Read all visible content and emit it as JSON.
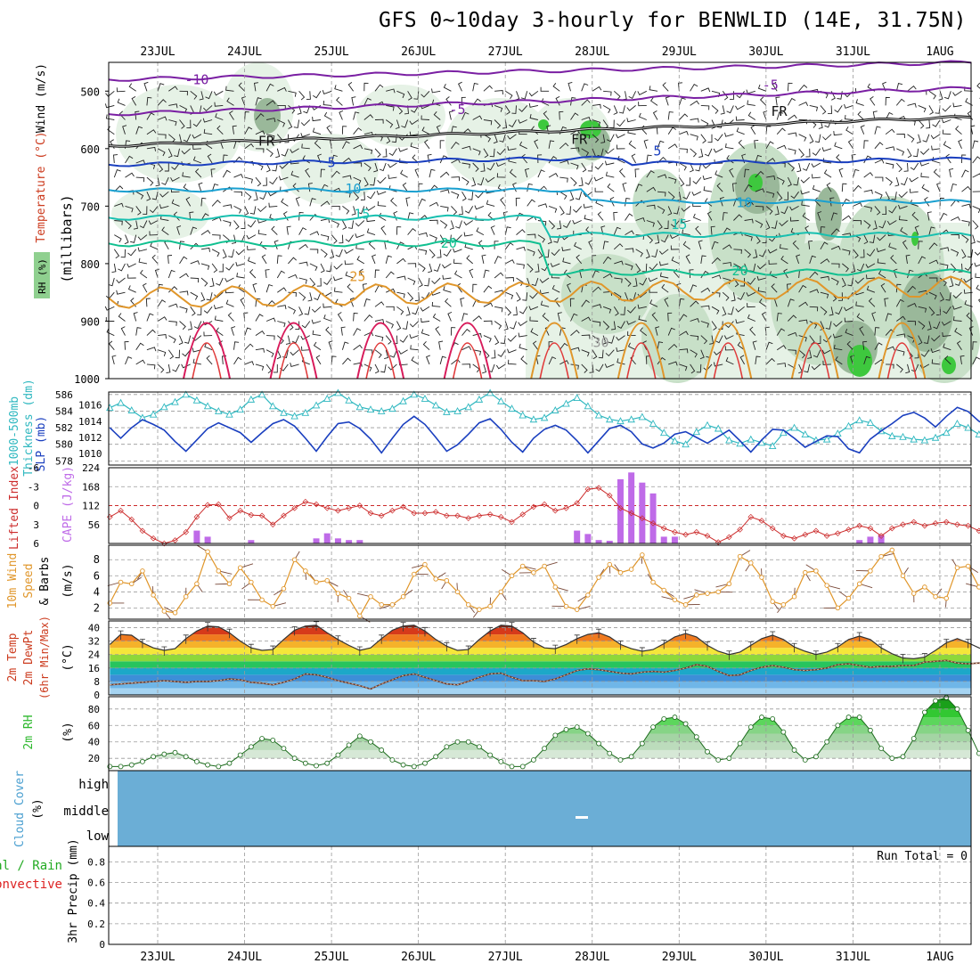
{
  "title": "GFS 0~10day 3-hourly for BENWLID (14E, 31.75N)",
  "colors": {
    "temperature": "#cc3b1e",
    "wind": "#222222",
    "rh_green": "#2db82d",
    "thickness": "#30b8c0",
    "slp": "#1a3fbf",
    "lifted_index": "#cc2b2b",
    "cape": "#bf6be8",
    "wind10m": "#e0962a",
    "cloud_fill": "#6baed6",
    "precip_total": "#22aa22",
    "precip_conv": "#dd2222"
  },
  "chart_data": [
    {
      "type": "heatmap",
      "panel": "upper-air",
      "x_labels": [
        "23JUL",
        "24JUL",
        "25JUL",
        "26JUL",
        "27JUL",
        "28JUL",
        "29JUL",
        "30JUL",
        "31JUL",
        "1AUG"
      ],
      "ylabel": "(millibars)",
      "y_ticks": [
        500,
        600,
        700,
        800,
        900,
        1000
      ],
      "ylim": [
        1000,
        450
      ],
      "legend": [
        "Temperature (°C)",
        "Wind (m/s)",
        "RH (%)"
      ],
      "contour_labels": [
        {
          "text": "-10",
          "x": 0.45,
          "y": 488,
          "color": "#7a1fa3"
        },
        {
          "text": "-5",
          "x": 3.45,
          "y": 540,
          "color": "#7a1fa3"
        },
        {
          "text": "-5",
          "x": 7.05,
          "y": 497,
          "color": "#7a1fa3"
        },
        {
          "text": "FR",
          "x": 1.25,
          "y": 595,
          "color": "#111111"
        },
        {
          "text": "FR",
          "x": 4.85,
          "y": 592,
          "color": "#111111"
        },
        {
          "text": "FR",
          "x": 7.15,
          "y": 543,
          "color": "#111111"
        },
        {
          "text": "5",
          "x": 2.0,
          "y": 632,
          "color": "#1a3fbf"
        },
        {
          "text": "5",
          "x": 5.75,
          "y": 612,
          "color": "#1a3fbf"
        },
        {
          "text": "10",
          "x": 2.25,
          "y": 678,
          "color": "#1aa0d0"
        },
        {
          "text": "10",
          "x": 6.75,
          "y": 702,
          "color": "#1aa0d0"
        },
        {
          "text": "15",
          "x": 2.35,
          "y": 722,
          "color": "#18c0b0"
        },
        {
          "text": "15",
          "x": 6.0,
          "y": 740,
          "color": "#18c0b0"
        },
        {
          "text": "20",
          "x": 3.35,
          "y": 772,
          "color": "#10c090"
        },
        {
          "text": "20",
          "x": 6.7,
          "y": 820,
          "color": "#10c090"
        },
        {
          "text": "25",
          "x": 2.3,
          "y": 830,
          "color": "#e0962a"
        },
        {
          "text": "30",
          "x": 5.1,
          "y": 945,
          "color": "#9a9a9a"
        }
      ]
    },
    {
      "type": "line",
      "panel": "thickness-slp",
      "x_labels": [
        "23JUL",
        "24JUL",
        "25JUL",
        "26JUL",
        "27JUL",
        "28JUL",
        "29JUL",
        "30JUL",
        "31JUL",
        "1AUG"
      ],
      "left_axis": {
        "label": "1000-500mb Thickness (dm)",
        "ticks": [
          578,
          580,
          582,
          584,
          586
        ],
        "range": [
          577.5,
          586.3
        ]
      },
      "right_axis": {
        "label": "SLP (mb)",
        "ticks": [
          1010,
          1012,
          1014,
          1016
        ],
        "range": [
          1008.6,
          1017.6
        ]
      },
      "series": [
        {
          "name": "1000-500mb Thickness (dm)",
          "axis": "left",
          "marker": "triangle",
          "values": [
            584.4,
            585.0,
            584.1,
            583.2,
            583.6,
            584.5,
            585.1,
            586.0,
            585.3,
            584.6,
            584.0,
            583.6,
            584.2,
            585.4,
            586.0,
            584.6,
            583.8,
            583.4,
            583.8,
            584.7,
            585.5,
            586.2,
            585.3,
            584.5,
            584.2,
            584.0,
            584.3,
            585.2,
            586.0,
            585.5,
            584.7,
            583.9,
            584.0,
            584.5,
            585.4,
            586.2,
            585.2,
            584.3,
            583.5,
            583.0,
            583.2,
            584.1,
            584.9,
            585.6,
            584.6,
            583.5,
            583.0,
            582.8,
            583.0,
            583.3,
            582.5,
            581.4,
            580.4,
            580.0,
            581.5,
            582.3,
            581.9,
            580.5,
            580.1,
            580.6,
            580.2,
            579.8,
            581.4,
            582.0,
            581.2,
            580.5,
            580.6,
            581.3,
            582.2,
            582.9,
            582.6,
            581.6,
            581.0,
            580.9,
            580.6,
            580.5,
            580.8,
            581.4,
            582.5,
            582.0,
            581.2,
            580.4,
            579.4,
            578.6
          ]
        },
        {
          "name": "SLP (mb)",
          "axis": "right",
          "marker": "none",
          "values": [
            1013.2,
            1011.9,
            1013.2,
            1014.2,
            1013.6,
            1012.9,
            1011.5,
            1010.3,
            1011.7,
            1013.1,
            1013.8,
            1013.2,
            1012.6,
            1011.4,
            1012.6,
            1013.7,
            1014.2,
            1013.4,
            1011.9,
            1010.3,
            1012.1,
            1013.7,
            1013.9,
            1013.1,
            1011.8,
            1010.1,
            1011.9,
            1013.6,
            1014.6,
            1013.6,
            1012.0,
            1010.3,
            1011.1,
            1012.4,
            1013.8,
            1014.3,
            1013.0,
            1011.4,
            1010.2,
            1011.9,
            1013.0,
            1013.5,
            1012.9,
            1011.6,
            1010.1,
            1011.6,
            1013.1,
            1013.5,
            1012.7,
            1011.2,
            1010.7,
            1011.3,
            1012.4,
            1012.7,
            1012.0,
            1011.3,
            1012.1,
            1012.9,
            1011.6,
            1010.2,
            1011.7,
            1013.0,
            1012.9,
            1011.9,
            1010.8,
            1011.5,
            1012.2,
            1012.1,
            1010.6,
            1010.1,
            1011.8,
            1012.8,
            1013.7,
            1014.7,
            1015.1,
            1014.4,
            1013.3,
            1014.6,
            1015.7,
            1015.2,
            1014.0,
            1013.3,
            1014.2,
            1014.9
          ]
        }
      ]
    },
    {
      "type": "bar",
      "panel": "li-cape",
      "x_labels": [
        "23JUL",
        "24JUL",
        "25JUL",
        "26JUL",
        "27JUL",
        "28JUL",
        "29JUL",
        "30JUL",
        "31JUL",
        "1AUG"
      ],
      "left_axis": {
        "label": "Lifted Index",
        "ticks": [
          "-6",
          "-3",
          "0",
          "3",
          "6"
        ],
        "range": [
          6,
          -6
        ]
      },
      "right_axis": {
        "label": "CAPE (J/kg)",
        "ticks": [
          56,
          112,
          168,
          224
        ],
        "range": [
          0,
          224
        ]
      },
      "series": [
        {
          "name": "Lifted Index",
          "type": "line",
          "values": [
            1.8,
            0.8,
            2.2,
            4.0,
            5.2,
            6.0,
            5.5,
            4.2,
            1.8,
            -0.1,
            -0.2,
            2.0,
            0.8,
            1.5,
            1.6,
            3.0,
            1.6,
            0.4,
            -0.6,
            -0.2,
            0.4,
            0.8,
            0.4,
            0.0,
            1.2,
            1.6,
            0.8,
            0.2,
            1.2,
            1.2,
            1.0,
            1.6,
            1.6,
            2.0,
            1.6,
            1.4,
            1.8,
            2.6,
            1.4,
            0.2,
            -0.2,
            0.8,
            0.4,
            -0.4,
            -2.6,
            -2.8,
            -1.6,
            0.4,
            1.2,
            2.0,
            2.8,
            3.6,
            4.2,
            4.6,
            4.2,
            4.8,
            5.8,
            5.0,
            3.8,
            1.8,
            2.4,
            3.6,
            4.8,
            5.2,
            4.6,
            4.0,
            4.8,
            4.4,
            3.8,
            3.2,
            3.6,
            4.8,
            3.6,
            3.0,
            2.6,
            3.2,
            2.8,
            2.6,
            3.0,
            3.2,
            4.0,
            3.0,
            2.6,
            3.0
          ]
        },
        {
          "name": "CAPE (J/kg)",
          "type": "bar",
          "values": [
            0,
            0,
            0,
            0,
            0,
            0,
            0,
            0,
            38,
            20,
            0,
            0,
            0,
            10,
            0,
            0,
            0,
            0,
            0,
            15,
            30,
            15,
            10,
            10,
            0,
            0,
            0,
            0,
            0,
            0,
            0,
            0,
            0,
            0,
            0,
            0,
            0,
            0,
            0,
            0,
            0,
            0,
            0,
            38,
            28,
            10,
            8,
            190,
            210,
            180,
            148,
            20,
            20,
            0,
            0,
            0,
            0,
            0,
            0,
            0,
            0,
            0,
            0,
            0,
            0,
            0,
            0,
            0,
            0,
            10,
            20,
            25,
            0,
            0,
            0,
            0,
            0,
            0,
            0,
            0,
            0,
            0,
            0,
            0
          ]
        }
      ]
    },
    {
      "type": "line",
      "panel": "wind10m",
      "x_labels": [
        "23JUL",
        "24JUL",
        "25JUL",
        "26JUL",
        "27JUL",
        "28JUL",
        "29JUL",
        "30JUL",
        "31JUL",
        "1AUG"
      ],
      "ylabel": "10m Wind Speed & Barbs (m/s)",
      "y_ticks": [
        2,
        4,
        6,
        8
      ],
      "ylim": [
        0.6,
        9.8
      ],
      "series": [
        {
          "name": "10m Wind Speed",
          "values": [
            2.6,
            5.2,
            5.0,
            6.6,
            3.6,
            1.6,
            1.4,
            3.4,
            5.0,
            9.0,
            6.6,
            5.0,
            7.0,
            5.2,
            3.0,
            2.2,
            4.4,
            8.0,
            6.6,
            5.2,
            5.4,
            3.8,
            3.2,
            1.0,
            3.4,
            2.4,
            2.4,
            3.4,
            6.2,
            7.4,
            5.6,
            5.4,
            4.0,
            2.4,
            1.8,
            2.2,
            4.0,
            6.0,
            7.2,
            6.4,
            7.2,
            4.6,
            2.2,
            1.8,
            3.6,
            5.8,
            7.4,
            6.4,
            6.8,
            8.6,
            5.2,
            4.2,
            3.0,
            2.4,
            3.6,
            3.8,
            4.0,
            5.0,
            8.4,
            7.6,
            5.8,
            2.8,
            2.4,
            3.4,
            6.4,
            6.6,
            4.8,
            2.0,
            3.2,
            5.0,
            6.6,
            8.4,
            9.2,
            6.0,
            3.8,
            4.6,
            3.4,
            3.2,
            7.0,
            7.2,
            4.6,
            2.4,
            2.6,
            1.8
          ]
        }
      ]
    },
    {
      "type": "area",
      "panel": "temp2m",
      "x_labels": [
        "23JUL",
        "24JUL",
        "25JUL",
        "26JUL",
        "27JUL",
        "28JUL",
        "29JUL",
        "30JUL",
        "31JUL",
        "1AUG"
      ],
      "ylabel": "2m Temp 2m DewPt (6hr Min/Max) (°C)",
      "y_ticks": [
        0,
        8,
        16,
        24,
        32,
        40
      ],
      "ylim": [
        0,
        44
      ],
      "series": [
        {
          "name": "2m Temp",
          "values": [
            30.0,
            36.0,
            35.5,
            31.0,
            28.0,
            26.5,
            27.5,
            33.5,
            38.0,
            41.0,
            40.5,
            37.0,
            32.0,
            28.0,
            26.5,
            27.0,
            33.0,
            38.5,
            41.0,
            41.5,
            37.0,
            33.0,
            29.5,
            26.5,
            28.0,
            33.5,
            38.5,
            41.0,
            41.5,
            38.0,
            33.0,
            29.0,
            26.5,
            27.0,
            33.0,
            38.0,
            41.5,
            41.0,
            37.0,
            31.5,
            28.0,
            27.5,
            30.0,
            33.5,
            36.0,
            37.0,
            34.5,
            30.0,
            27.5,
            26.0,
            27.0,
            30.5,
            34.5,
            36.5,
            34.5,
            29.5,
            26.0,
            24.0,
            25.5,
            29.5,
            33.5,
            35.5,
            33.0,
            28.5,
            26.0,
            24.0,
            25.5,
            28.5,
            33.0,
            35.0,
            33.0,
            28.0,
            24.5,
            22.0,
            21.5,
            22.5,
            26.5,
            31.0,
            33.5,
            31.0,
            28.0,
            25.5,
            23.5,
            24.0
          ]
        },
        {
          "name": "2m DewPt",
          "values": [
            6.0,
            6.5,
            7.0,
            7.5,
            8.0,
            8.5,
            8.0,
            7.5,
            8.0,
            8.0,
            8.5,
            9.5,
            9.0,
            7.5,
            7.0,
            6.0,
            7.5,
            9.5,
            12.5,
            12.0,
            10.5,
            8.5,
            7.0,
            5.5,
            3.5,
            6.5,
            9.0,
            11.5,
            12.5,
            10.5,
            8.5,
            6.5,
            6.0,
            8.0,
            10.5,
            12.5,
            13.0,
            10.5,
            8.5,
            8.5,
            8.0,
            9.5,
            12.0,
            14.5,
            15.5,
            15.0,
            14.0,
            13.0,
            12.5,
            13.5,
            14.0,
            13.5,
            14.5,
            16.0,
            18.0,
            17.0,
            14.0,
            11.5,
            12.0,
            14.5,
            16.5,
            17.5,
            16.5,
            15.0,
            14.5,
            15.0,
            16.0,
            18.0,
            18.5,
            17.5,
            16.5,
            17.0,
            17.0,
            17.5,
            17.5,
            19.5,
            20.0,
            20.5,
            19.0,
            18.5,
            19.0,
            18.5,
            20.0,
            20.5
          ]
        }
      ]
    },
    {
      "type": "area",
      "panel": "rh2m",
      "x_labels": [
        "23JUL",
        "24JUL",
        "25JUL",
        "26JUL",
        "27JUL",
        "28JUL",
        "29JUL",
        "30JUL",
        "31JUL",
        "1AUG"
      ],
      "ylabel": "2m RH (%)",
      "y_ticks": [
        20,
        40,
        60,
        80
      ],
      "ylim": [
        5,
        95
      ],
      "series": [
        {
          "name": "2m RH",
          "values": [
            10,
            10,
            12,
            16,
            22,
            25,
            27,
            22,
            16,
            12,
            10,
            14,
            24,
            34,
            44,
            42,
            32,
            20,
            14,
            11,
            14,
            24,
            36,
            47,
            40,
            30,
            18,
            12,
            10,
            14,
            22,
            34,
            40,
            40,
            34,
            24,
            16,
            10,
            10,
            18,
            32,
            48,
            55,
            58,
            50,
            38,
            26,
            18,
            22,
            38,
            58,
            68,
            70,
            62,
            46,
            28,
            18,
            20,
            38,
            58,
            70,
            68,
            52,
            30,
            18,
            22,
            40,
            60,
            70,
            70,
            54,
            32,
            20,
            22,
            44,
            76,
            90,
            94,
            80,
            54,
            26,
            24,
            48,
            70,
            84,
            80
          ]
        }
      ]
    },
    {
      "type": "table",
      "panel": "cloud-cover",
      "ylabel": "Cloud Cover (%)",
      "levels": [
        "high",
        "middle",
        "low"
      ],
      "note": "–"
    },
    {
      "type": "bar",
      "panel": "precip",
      "x_labels": [
        "23JUL",
        "24JUL",
        "25JUL",
        "26JUL",
        "27JUL",
        "28JUL",
        "29JUL",
        "30JUL",
        "31JUL",
        "1AUG"
      ],
      "ylabel": "3hr Precip (mm)",
      "legend": [
        "Total / Rain",
        "Convective"
      ],
      "y_ticks": [
        "0",
        "0.2",
        "0.4",
        "0.6",
        "0.8"
      ],
      "ylim": [
        0,
        0.95
      ],
      "run_total": "Run Total = 0"
    }
  ]
}
